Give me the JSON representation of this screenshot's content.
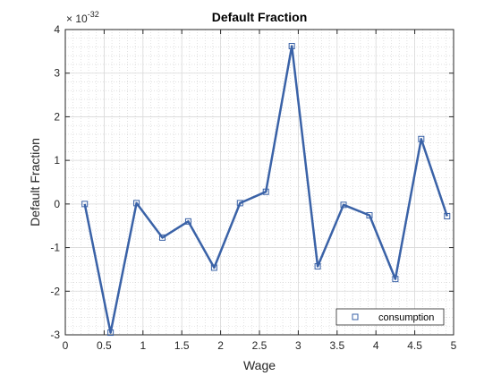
{
  "chart_data": {
    "type": "line",
    "title": "Default Fraction",
    "xlabel": "Wage",
    "ylabel": "Default Fraction",
    "y_exponent_label": "× 10",
    "y_exponent": "-32",
    "xlim": [
      0,
      5
    ],
    "ylim": [
      -3,
      4
    ],
    "x_ticks": [
      0,
      0.5,
      1,
      1.5,
      2,
      2.5,
      3,
      3.5,
      4,
      4.5,
      5
    ],
    "x_tick_labels": [
      "0",
      "0.5",
      "1",
      "1.5",
      "2",
      "2.5",
      "3",
      "3.5",
      "4",
      "4.5",
      "5"
    ],
    "y_ticks": [
      -3,
      -2,
      -1,
      0,
      1,
      2,
      3,
      4
    ],
    "y_tick_labels": [
      "-3",
      "-2",
      "-1",
      "0",
      "1",
      "2",
      "3",
      "4"
    ],
    "grid": true,
    "minor_grid": true,
    "legend_position": "bottom-right",
    "color": "#3a62a7",
    "marker": "square",
    "series": [
      {
        "name": "consumption",
        "x": [
          0.25,
          0.5833,
          0.9167,
          1.25,
          1.5833,
          1.9167,
          2.25,
          2.5833,
          2.9167,
          3.25,
          3.5833,
          3.9167,
          4.25,
          4.5833,
          4.9167
        ],
        "y": [
          0.0,
          -2.95,
          0.02,
          -0.77,
          -0.4,
          -1.46,
          0.02,
          0.28,
          3.62,
          -1.43,
          -0.02,
          -0.26,
          -1.72,
          1.49,
          -0.28
        ]
      }
    ]
  }
}
